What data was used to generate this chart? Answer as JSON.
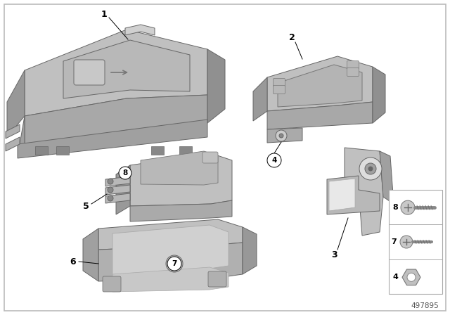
{
  "background_color": "#ffffff",
  "border_color": "#bbbbbb",
  "diagram_number": "497895",
  "fig_color": "#f5f5f5",
  "comp_face_top": "#c8c8c8",
  "comp_face_front": "#b0b0b0",
  "comp_face_side": "#989898",
  "comp_face_dark": "#888888",
  "comp_edge": "#666666",
  "label_fontsize": 9,
  "circle_r": 0.014
}
